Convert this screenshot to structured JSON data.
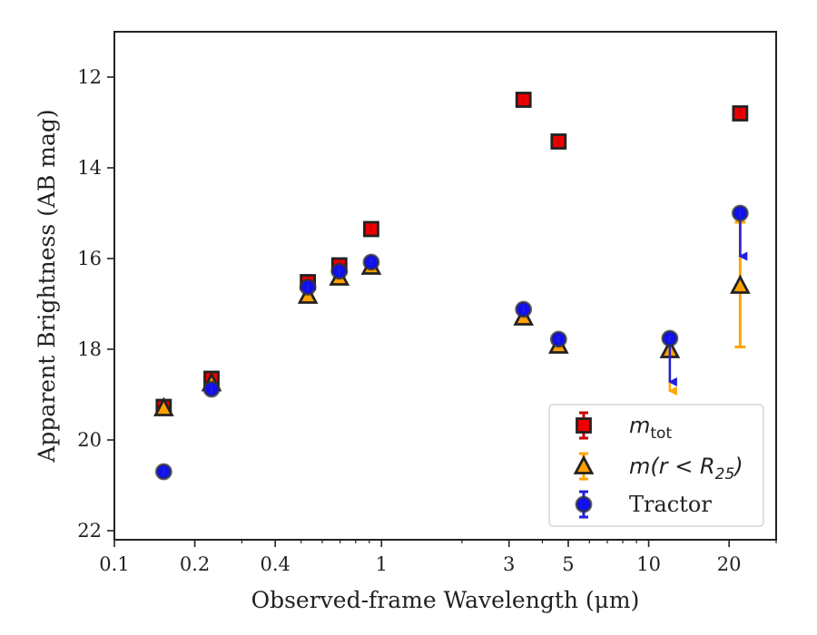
{
  "chart_data": {
    "type": "scatter",
    "title": "",
    "xlabel": "Observed-frame Wavelength (μm)",
    "ylabel": "Apparent Brightness (AB mag)",
    "xscale": "log",
    "yinverted": true,
    "xlim": [
      0.1,
      30
    ],
    "ylim": [
      22.2,
      11
    ],
    "xticks": [
      {
        "value": 0.1,
        "label": "0.1"
      },
      {
        "value": 0.2,
        "label": "0.2"
      },
      {
        "value": 0.4,
        "label": "0.4"
      },
      {
        "value": 1,
        "label": "1"
      },
      {
        "value": 3,
        "label": "3"
      },
      {
        "value": 5,
        "label": "5"
      },
      {
        "value": 10,
        "label": "10"
      },
      {
        "value": 20,
        "label": "20"
      }
    ],
    "yticks": [
      {
        "value": 12,
        "label": "12"
      },
      {
        "value": 14,
        "label": "14"
      },
      {
        "value": 16,
        "label": "16"
      },
      {
        "value": 18,
        "label": "18"
      },
      {
        "value": 20,
        "label": "20"
      },
      {
        "value": 22,
        "label": "22"
      }
    ],
    "grid": false,
    "legend_position": "lower-right",
    "series": [
      {
        "name": "m_tot",
        "legend_main": "m",
        "legend_sub": "tot",
        "marker": "square",
        "color": "#ee0000",
        "errcolor": "#cc0000",
        "points": [
          {
            "x": 0.153,
            "y": 19.27
          },
          {
            "x": 0.231,
            "y": 18.65
          },
          {
            "x": 0.53,
            "y": 16.52
          },
          {
            "x": 0.695,
            "y": 16.15
          },
          {
            "x": 0.915,
            "y": 15.35
          },
          {
            "x": 3.4,
            "y": 12.5
          },
          {
            "x": 4.6,
            "y": 13.42
          },
          {
            "x": 22.0,
            "y": 12.8
          }
        ]
      },
      {
        "name": "m(r < R25)",
        "legend_main": "m(r < R",
        "legend_sub": "25",
        "legend_tail": ")",
        "marker": "triangle",
        "color": "#ffa000",
        "errcolor": "#ffa500",
        "points": [
          {
            "x": 0.153,
            "y": 19.3
          },
          {
            "x": 0.231,
            "y": 18.75
          },
          {
            "x": 0.53,
            "y": 16.82
          },
          {
            "x": 0.695,
            "y": 16.42
          },
          {
            "x": 0.915,
            "y": 16.18
          },
          {
            "x": 3.4,
            "y": 17.3
          },
          {
            "x": 4.6,
            "y": 17.92
          },
          {
            "x": 12.0,
            "y": 18.02,
            "upper_limit": true,
            "arrow_to": 18.92
          },
          {
            "x": 22.0,
            "y": 16.6,
            "err_low": 15.2,
            "err_high": 17.95
          }
        ]
      },
      {
        "name": "Tractor",
        "marker": "circle",
        "color": "#1010ee",
        "errcolor": "#2020dd",
        "points": [
          {
            "x": 0.153,
            "y": 20.7
          },
          {
            "x": 0.231,
            "y": 18.88
          },
          {
            "x": 0.53,
            "y": 16.63
          },
          {
            "x": 0.695,
            "y": 16.28
          },
          {
            "x": 0.915,
            "y": 16.08
          },
          {
            "x": 3.4,
            "y": 17.12
          },
          {
            "x": 4.6,
            "y": 17.78
          },
          {
            "x": 12.0,
            "y": 17.76,
            "upper_limit": true,
            "arrow_to": 18.72
          },
          {
            "x": 22.0,
            "y": 15.0,
            "upper_limit": true,
            "arrow_to": 15.95
          }
        ]
      }
    ]
  }
}
